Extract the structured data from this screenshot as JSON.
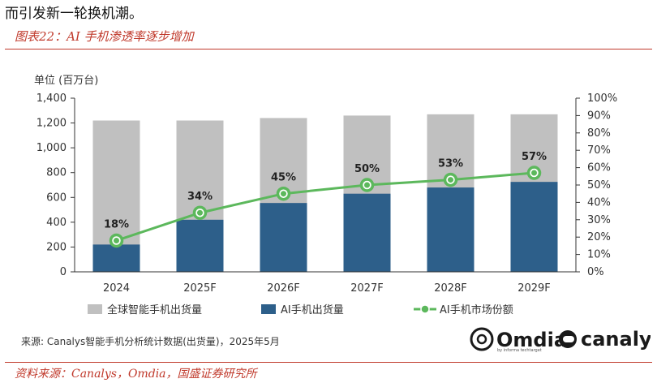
{
  "intro_text": "而引发新一轮换机潮。",
  "figure_title": "图表22：AI 手机渗透率逐步增加",
  "source_footer": "资料来源：Canalys，Omdia，国盛证券研究所",
  "chart_data": {
    "type": "bar",
    "unit_label": "单位 (百万台)",
    "categories": [
      "2024",
      "2025F",
      "2026F",
      "2027F",
      "2028F",
      "2029F"
    ],
    "series": [
      {
        "name": "全球智能手机出货量",
        "values": [
          1220,
          1220,
          1240,
          1260,
          1270,
          1270
        ],
        "color": "#c0c0c0"
      },
      {
        "name": "AI手机出货量",
        "values": [
          220,
          420,
          555,
          630,
          680,
          725
        ],
        "color": "#2d5f8a"
      },
      {
        "name": "AI手机市场份额",
        "type": "line",
        "axis": "right",
        "values": [
          18,
          34,
          45,
          50,
          53,
          57
        ],
        "color": "#5cb85c"
      }
    ],
    "point_labels": [
      "18%",
      "34%",
      "45%",
      "50%",
      "53%",
      "57%"
    ],
    "ylim": [
      0,
      1400
    ],
    "y_ticks": [
      "0",
      "200",
      "400",
      "600",
      "800",
      "1,000",
      "1,200",
      "1,400"
    ],
    "y2lim": [
      0,
      100
    ],
    "y2_ticks": [
      "0%",
      "10%",
      "20%",
      "30%",
      "40%",
      "50%",
      "60%",
      "70%",
      "80%",
      "90%",
      "100%"
    ],
    "grid": false,
    "legend_position": "bottom",
    "note": "来源: Canalys智能手机分析统计数据(出货量)，2025年5月",
    "logos": {
      "omdia": "Omdia",
      "omdia_tagline": "by informa techtarget",
      "canalys": "canalys"
    }
  }
}
